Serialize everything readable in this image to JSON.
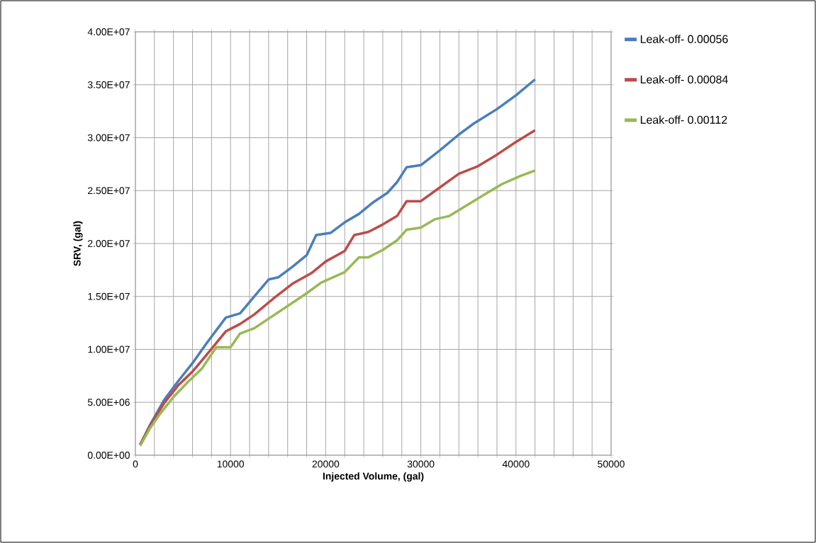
{
  "chart_data": {
    "type": "line",
    "xlabel": "Injected Volume, (gal)",
    "ylabel": "SRV, (gal)",
    "xlim": [
      0,
      50000
    ],
    "ylim": [
      0,
      40000000
    ],
    "xticks": [
      0,
      {
        "value": 2000,
        "label": null
      },
      {
        "value": 4000,
        "label": null
      },
      {
        "value": 6000,
        "label": null
      },
      {
        "value": 8000,
        "label": null
      },
      10000,
      {
        "value": 12000,
        "label": null
      },
      {
        "value": 14000,
        "label": null
      },
      {
        "value": 16000,
        "label": null
      },
      {
        "value": 18000,
        "label": null
      },
      20000,
      {
        "value": 22000,
        "label": null
      },
      {
        "value": 24000,
        "label": null
      },
      {
        "value": 26000,
        "label": null
      },
      {
        "value": 28000,
        "label": null
      },
      30000,
      {
        "value": 32000,
        "label": null
      },
      {
        "value": 34000,
        "label": null
      },
      {
        "value": 36000,
        "label": null
      },
      {
        "value": 38000,
        "label": null
      },
      40000,
      {
        "value": 42000,
        "label": null
      },
      {
        "value": 44000,
        "label": null
      },
      {
        "value": 46000,
        "label": null
      },
      {
        "value": 48000,
        "label": null
      },
      50000
    ],
    "yticks": [
      {
        "value": 0,
        "label": "0.00E+00"
      },
      {
        "value": 5000000,
        "label": "5.00E+06"
      },
      {
        "value": 10000000,
        "label": "1.00E+07"
      },
      {
        "value": 15000000,
        "label": "1.50E+07"
      },
      {
        "value": 20000000,
        "label": "2.00E+07"
      },
      {
        "value": 25000000,
        "label": "2.50E+07"
      },
      {
        "value": 30000000,
        "label": "3.00E+07"
      },
      {
        "value": 35000000,
        "label": "3.50E+07"
      },
      {
        "value": 40000000,
        "label": "4.00E+07"
      }
    ],
    "grid": true,
    "legend": "right",
    "marker": "none",
    "line_style": "solid",
    "series": [
      {
        "name": "Leak-off- 0.00056",
        "color": "#4a7ebb",
        "x": [
          500,
          1500,
          3000,
          4500,
          6000,
          7500,
          9500,
          11000,
          12500,
          14000,
          15000,
          16500,
          18000,
          19000,
          20500,
          22000,
          23500,
          25000,
          26500,
          27500,
          28500,
          30000,
          32000,
          34000,
          35500,
          38000,
          40000,
          42000
        ],
        "values": [
          1000000,
          2800000,
          5200000,
          7000000,
          8700000,
          10600000,
          13000000,
          13400000,
          15000000,
          16600000,
          16800000,
          17800000,
          18900000,
          20800000,
          21000000,
          22000000,
          22800000,
          23900000,
          24800000,
          25800000,
          27200000,
          27400000,
          28800000,
          30300000,
          31300000,
          32700000,
          34000000,
          35500000
        ]
      },
      {
        "name": "Leak-off- 0.00084",
        "color": "#be4b48",
        "x": [
          500,
          1500,
          3000,
          4500,
          6000,
          7500,
          9500,
          11000,
          12500,
          14500,
          16500,
          18500,
          20000,
          22000,
          23000,
          24500,
          26000,
          27500,
          28500,
          30000,
          32000,
          34000,
          36000,
          38000,
          40000,
          42000
        ],
        "values": [
          1000000,
          2700000,
          4900000,
          6600000,
          7900000,
          9500000,
          11700000,
          12400000,
          13300000,
          14800000,
          16200000,
          17200000,
          18300000,
          19300000,
          20800000,
          21100000,
          21800000,
          22600000,
          24000000,
          24000000,
          25300000,
          26600000,
          27300000,
          28400000,
          29600000,
          30700000
        ]
      },
      {
        "name": "Leak-off- 0.00112",
        "color": "#98b954",
        "x": [
          500,
          1500,
          2500,
          4000,
          5500,
          7000,
          8500,
          10000,
          11000,
          12500,
          14000,
          16000,
          18000,
          19500,
          21000,
          22000,
          23500,
          24500,
          26000,
          27500,
          28500,
          30000,
          31500,
          33000,
          35000,
          37000,
          38500,
          40500,
          42000
        ],
        "values": [
          900000,
          2500000,
          3800000,
          5500000,
          6900000,
          8200000,
          10200000,
          10200000,
          11500000,
          12000000,
          12900000,
          14100000,
          15300000,
          16300000,
          16900000,
          17300000,
          18700000,
          18700000,
          19400000,
          20300000,
          21300000,
          21500000,
          22300000,
          22600000,
          23700000,
          24800000,
          25600000,
          26400000,
          26900000
        ]
      }
    ]
  }
}
